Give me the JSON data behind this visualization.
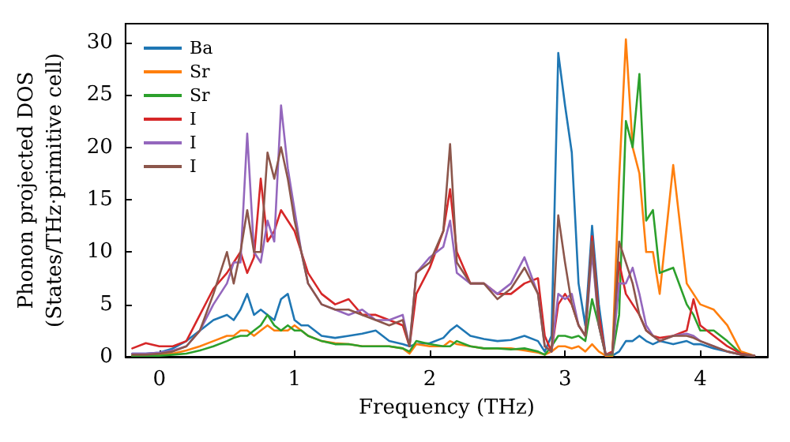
{
  "chart_data": {
    "type": "line",
    "xlabel": "Frequency (THz)",
    "ylabel": "Phonon projected DOS\n(States/THz·primitive cell)",
    "x": [
      -0.2,
      -0.1,
      0,
      0.1,
      0.2,
      0.3,
      0.4,
      0.5,
      0.55,
      0.6,
      0.65,
      0.7,
      0.75,
      0.8,
      0.85,
      0.9,
      0.95,
      1.0,
      1.05,
      1.1,
      1.2,
      1.3,
      1.4,
      1.5,
      1.6,
      1.7,
      1.8,
      1.85,
      1.9,
      2.0,
      2.1,
      2.15,
      2.2,
      2.3,
      2.4,
      2.5,
      2.6,
      2.7,
      2.8,
      2.85,
      2.9,
      2.95,
      3.0,
      3.05,
      3.1,
      3.15,
      3.2,
      3.25,
      3.3,
      3.35,
      3.4,
      3.45,
      3.5,
      3.55,
      3.6,
      3.65,
      3.7,
      3.8,
      3.9,
      3.95,
      4.0,
      4.1,
      4.2,
      4.3,
      4.4
    ],
    "series": [
      {
        "name": "Ba",
        "color": "#1f77b4",
        "values": [
          0.3,
          0.3,
          0.4,
          0.8,
          1.5,
          2.5,
          3.5,
          4,
          3.5,
          4.5,
          6,
          4,
          4.5,
          4,
          3.5,
          5.5,
          6,
          3.5,
          3,
          3,
          2,
          1.8,
          2,
          2.2,
          2.5,
          1.5,
          1.2,
          1,
          1.2,
          1.3,
          1.8,
          2.5,
          3,
          2,
          1.7,
          1.5,
          1.6,
          2,
          1.5,
          0.5,
          2,
          29,
          24,
          19.5,
          7,
          3,
          12.5,
          5,
          0.2,
          0.1,
          0.5,
          1.5,
          1.5,
          2,
          1.5,
          1.2,
          1.5,
          1.2,
          1.5,
          1.2,
          1.2,
          0.8,
          0.5,
          0.2,
          0.1
        ]
      },
      {
        "name": "Sr",
        "color": "#ff7f0e",
        "values": [
          0.1,
          0.1,
          0.2,
          0.3,
          0.6,
          1,
          1.5,
          2,
          2,
          2.5,
          2.5,
          2,
          2.5,
          3,
          2.5,
          2.5,
          2.5,
          3,
          2.5,
          2,
          1.5,
          1.3,
          1.2,
          1,
          1,
          1,
          0.8,
          0.3,
          1.2,
          1,
          1,
          1.5,
          1.2,
          1,
          0.8,
          0.8,
          0.8,
          0.6,
          0.4,
          0.2,
          0.5,
          1,
          1,
          0.8,
          1,
          0.5,
          1.2,
          0.5,
          0.1,
          0.1,
          17,
          30.3,
          20,
          17.5,
          10,
          10,
          6,
          18.3,
          7,
          6,
          5,
          4.5,
          3,
          0.5,
          0.1
        ]
      },
      {
        "name": "Sr",
        "color": "#2ca02c",
        "values": [
          0.1,
          0.1,
          0.1,
          0.2,
          0.3,
          0.6,
          1,
          1.5,
          1.8,
          2,
          2,
          2.5,
          3,
          4,
          3,
          2.5,
          3,
          2.5,
          2.5,
          2,
          1.5,
          1.2,
          1.2,
          1,
          1,
          1,
          0.8,
          0.5,
          1.5,
          1.2,
          1,
          1,
          1.5,
          1,
          0.8,
          0.8,
          0.7,
          0.8,
          0.5,
          0.2,
          1,
          2,
          2,
          1.8,
          2,
          1.5,
          5.5,
          3,
          0.2,
          0.2,
          4,
          22.5,
          20,
          27,
          13,
          14,
          8,
          8.5,
          5,
          4,
          2.5,
          2.5,
          1.5,
          0.3,
          0.1
        ]
      },
      {
        "name": "I",
        "color": "#d62728",
        "values": [
          0.8,
          1.3,
          1,
          1,
          1.5,
          4,
          6.5,
          8,
          9,
          10,
          8,
          9.5,
          17,
          11,
          12,
          14,
          13,
          12,
          10,
          8,
          6,
          5,
          5.5,
          4,
          4,
          3.5,
          3,
          1,
          6,
          8.5,
          12,
          16,
          10,
          7,
          7,
          6,
          6,
          7,
          7.5,
          2,
          0.5,
          5,
          6,
          5,
          3,
          2,
          11.5,
          4,
          0.2,
          0.5,
          9,
          6,
          5,
          4,
          2.5,
          2,
          1.8,
          2,
          2.5,
          5.5,
          3,
          2,
          1,
          0.3,
          0.1
        ]
      },
      {
        "name": "I",
        "color": "#9467bd",
        "values": [
          0.3,
          0.3,
          0.4,
          0.6,
          1,
          2.5,
          5,
          7,
          9,
          9,
          21.3,
          10,
          9,
          13,
          11,
          24,
          18,
          14,
          10,
          7,
          5,
          4.5,
          4,
          4.5,
          3.5,
          3.5,
          4,
          1,
          8,
          9.5,
          10.5,
          13,
          8,
          7,
          7,
          6,
          7,
          9.5,
          6,
          1,
          0.5,
          6,
          5.5,
          6,
          3,
          2,
          10,
          3,
          0.2,
          0.3,
          7,
          7,
          8.5,
          6,
          3,
          2,
          1.5,
          2,
          2.2,
          2,
          1.5,
          1,
          0.5,
          0.2,
          0.1
        ]
      },
      {
        "name": "I",
        "color": "#8c564b",
        "values": [
          0.2,
          0.2,
          0.3,
          0.5,
          1,
          2.5,
          6,
          10,
          7,
          10,
          14,
          10,
          10,
          19.5,
          17,
          20,
          17,
          13,
          10,
          7,
          5,
          4.5,
          4.5,
          4,
          3.5,
          3,
          3.5,
          1,
          8,
          9,
          12,
          20.3,
          9,
          7,
          7,
          5.5,
          6.5,
          8.5,
          6,
          1,
          0.5,
          13.5,
          9,
          5,
          3,
          2,
          11,
          3,
          0.2,
          0.3,
          11,
          9,
          7,
          4,
          2.5,
          2,
          1.5,
          2,
          2,
          1.8,
          1.5,
          1,
          0.5,
          0.2,
          0.1
        ]
      }
    ],
    "xlim": [
      -0.25,
      4.5
    ],
    "xticks": [
      0,
      1,
      2,
      3,
      4
    ],
    "ylim": [
      0,
      31.8
    ],
    "yticks": [
      0,
      5,
      10,
      15,
      20,
      25,
      30
    ],
    "grid": false,
    "legend": "top left",
    "marker": "none",
    "line_style": "solid"
  }
}
